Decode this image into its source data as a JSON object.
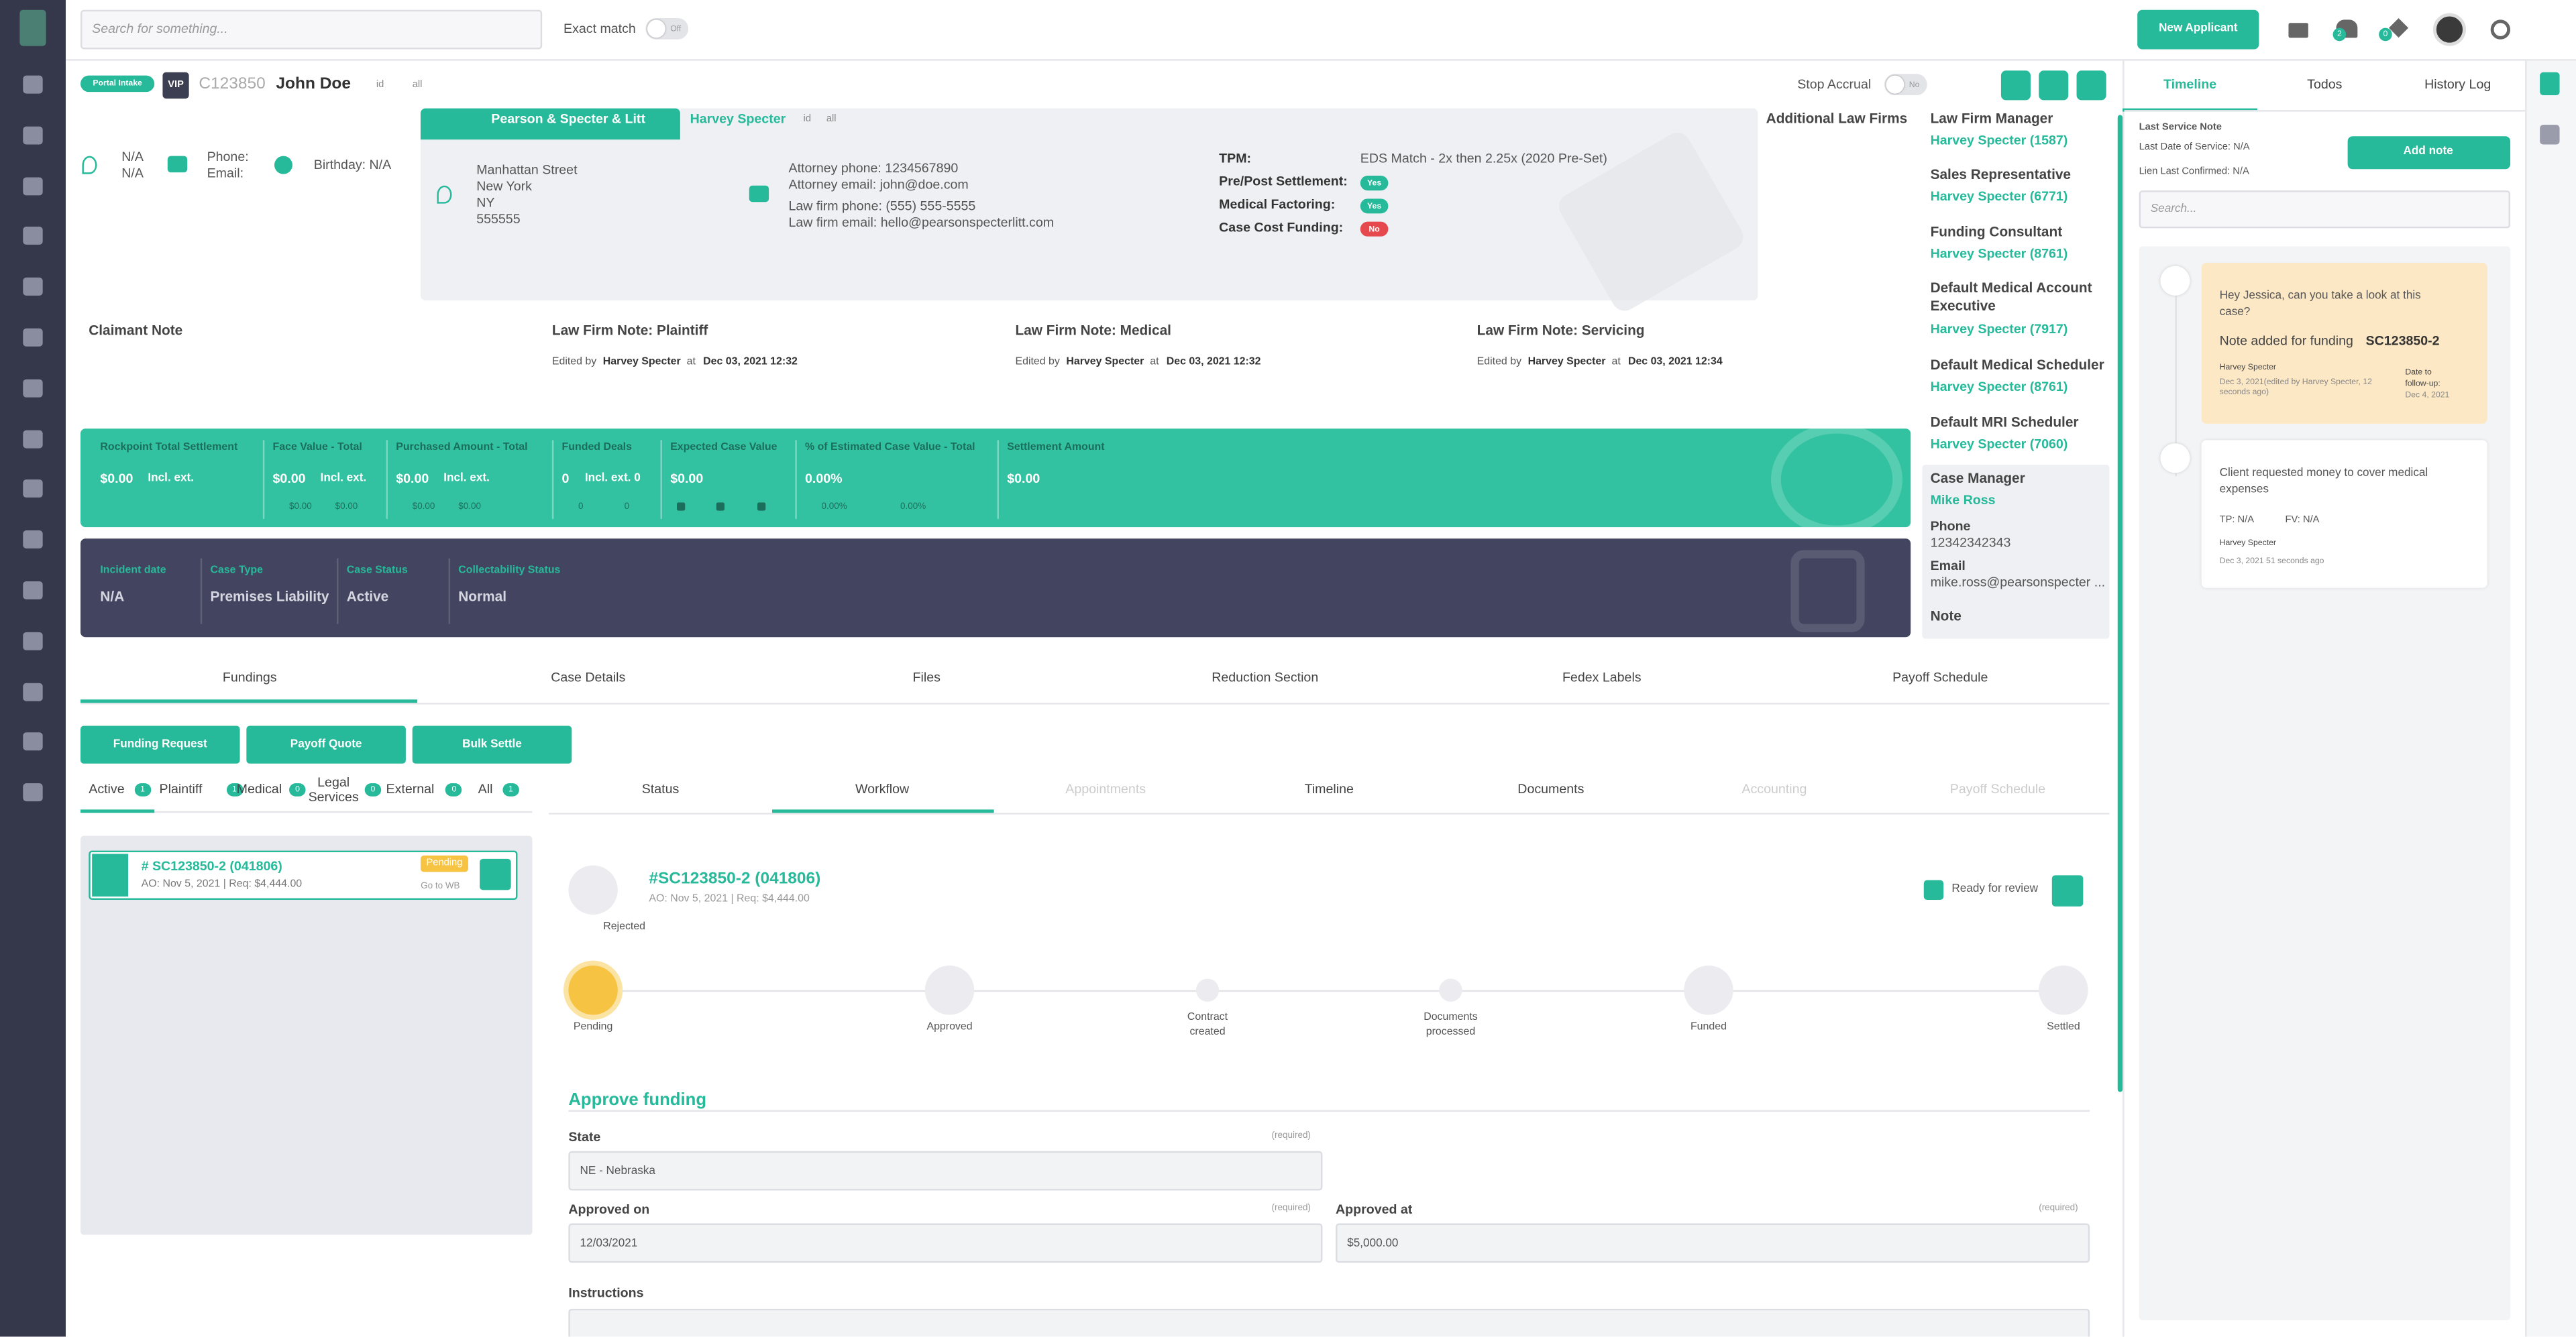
{
  "topbar": {
    "search": "Search for something...",
    "exact_match": "Exact match",
    "toggle": "Off",
    "new_applicant": "New Applicant",
    "badges": [
      "2",
      "0"
    ]
  },
  "header": {
    "portal_intake": "Portal Intake",
    "vip": "VIP",
    "case_id": "C123850",
    "name": "John Doe",
    "copy_id": "id",
    "copy_all": "all",
    "stop_accrual": "Stop Accrual",
    "toggle": "No"
  },
  "client": {
    "line1": "N/A",
    "line2": "N/A",
    "phone": "Phone:",
    "email": "Email:",
    "birthday": "Birthday: N/A"
  },
  "law_firm": {
    "name": "Pearson & Specter & Litt",
    "attorney": "Harvey Specter",
    "copy_id": "id",
    "copy_all": "all",
    "address": [
      "Manhattan Street",
      "New York",
      "NY",
      "555555"
    ],
    "contacts": [
      "Attorney phone: 1234567890",
      "Attorney email: john@doe.com",
      "Law firm phone: (555) 555-5555",
      "Law firm email: hello@pearsonspecterlitt.com"
    ],
    "fields": [
      {
        "label": "TPM:",
        "value": "EDS Match - 2x then 2.25x (2020 Pre-Set)"
      },
      {
        "label": "Pre/Post Settlement:",
        "value": "Yes"
      },
      {
        "label": "Medical Factoring:",
        "value": "Yes"
      },
      {
        "label": "Case Cost Funding:",
        "value": "No"
      }
    ]
  },
  "additional_law_firms": "Additional Law Firms",
  "staff": [
    {
      "role": "Law Firm Manager",
      "name": "Harvey Specter (1587)"
    },
    {
      "role": "Sales Representative",
      "name": "Harvey Specter (6771)"
    },
    {
      "role": "Funding Consultant",
      "name": "Harvey Specter (8761)"
    },
    {
      "role": "Default Medical Account Executive",
      "name": "Harvey Specter (7917)"
    },
    {
      "role": "Default Medical Scheduler",
      "name": "Harvey Specter (8761)"
    },
    {
      "role": "Default MRI Scheduler",
      "name": "Harvey Specter (7060)"
    }
  ],
  "case_manager": {
    "title": "Case Manager",
    "name": "Mike Ross",
    "phone_label": "Phone",
    "phone": "12342342343",
    "email_label": "Email",
    "email": "mike.ross@pearsonspecter ...",
    "note": "Note"
  },
  "notes": {
    "claimant": "Claimant Note",
    "law_firm": [
      {
        "title": "Law Firm Note: Plaintiff",
        "edited_by": "Edited by",
        "author": "Harvey Specter",
        "at": "at",
        "date": "Dec 03, 2021 12:32"
      },
      {
        "title": "Law Firm Note: Medical",
        "edited_by": "Edited by",
        "author": "Harvey Specter",
        "at": "at",
        "date": "Dec 03, 2021 12:32"
      },
      {
        "title": "Law Firm Note: Servicing",
        "edited_by": "Edited by",
        "author": "Harvey Specter",
        "at": "at",
        "date": "Dec 03, 2021 12:34"
      }
    ]
  },
  "stats": [
    {
      "label": "Rockpoint Total Settlement",
      "value": "$0.00",
      "ext": "Incl. ext.",
      "sub": []
    },
    {
      "label": "Face Value - Total",
      "value": "$0.00",
      "ext": "Incl. ext.",
      "sub": [
        "$0.00",
        "$0.00"
      ]
    },
    {
      "label": "Purchased Amount - Total",
      "value": "$0.00",
      "ext": "Incl. ext.",
      "sub": [
        "$0.00",
        "$0.00"
      ]
    },
    {
      "label": "Funded Deals",
      "value": "0",
      "ext": "Incl. ext. 0",
      "sub": [
        "0",
        "0"
      ]
    },
    {
      "label": "Expected Case Value",
      "value": "$0.00",
      "sub": []
    },
    {
      "label": "% of Estimated Case Value - Total",
      "value": "0.00%",
      "sub": [
        "0.00%",
        "0.00%"
      ]
    },
    {
      "label": "Settlement Amount",
      "value": "$0.00",
      "sub": []
    }
  ],
  "case_info": [
    {
      "label": "Incident date",
      "value": "N/A"
    },
    {
      "label": "Case Type",
      "value": "Premises Liability"
    },
    {
      "label": "Case Status",
      "value": "Active"
    },
    {
      "label": "Collectability Status",
      "value": "Normal"
    }
  ],
  "tabs": [
    "Fundings",
    "Case Details",
    "Files",
    "Reduction Section",
    "Fedex Labels",
    "Payoff Schedule"
  ],
  "actions": [
    "Funding Request",
    "Payoff Quote",
    "Bulk Settle"
  ],
  "filters": [
    {
      "label": "Active",
      "count": "1"
    },
    {
      "label": "Plaintiff",
      "count": "1"
    },
    {
      "label": "Medical",
      "count": "0"
    },
    {
      "label": "Legal Services",
      "count": "0"
    },
    {
      "label": "External",
      "count": "0"
    },
    {
      "label": "All",
      "count": "1"
    }
  ],
  "funding_card": {
    "title": "# SC123850-2 (041806)",
    "meta": "AO: Nov 5, 2021 | Req: $4,444.00",
    "status": "Pending",
    "link": "Go to WB"
  },
  "subtabs": [
    "Status",
    "Workflow",
    "Appointments",
    "Timeline",
    "Documents",
    "Accounting",
    "Payoff Schedule"
  ],
  "workflow": {
    "title": "#SC123850-2 (041806)",
    "meta": "AO: Nov 5, 2021 | Req: $4,444.00",
    "ready": "Ready for review",
    "rejected": "Rejected",
    "steps": [
      "Pending",
      "Approved",
      "Contract created",
      "Documents processed",
      "Funded",
      "Settled"
    ]
  },
  "form": {
    "title": "Approve funding",
    "required": "(required)",
    "fields": [
      {
        "label": "State",
        "value": "NE - Nebraska"
      },
      {
        "label": "Approved on",
        "value": "12/03/2021"
      },
      {
        "label": "Approved at",
        "value": "$5,000.00"
      }
    ],
    "instructions": "Instructions"
  },
  "side_panel": {
    "tabs": [
      "Timeline",
      "Todos",
      "History Log"
    ],
    "last_service_note": "Last Service Note",
    "last_date": "Last Date of Service: N/A",
    "lien": "Lien Last Confirmed: N/A",
    "add_note": "Add note",
    "search": "Search...",
    "notes": [
      {
        "text": "Hey Jessica, can you take a look at this case?",
        "added": "Note added for funding",
        "funding": "SC123850-2",
        "author": "Harvey Specter",
        "date": "Dec 3, 2021(edited by Harvey Specter, 12 seconds ago)",
        "follow_label": "Date to follow-up:",
        "follow_date": "Dec 4, 2021"
      },
      {
        "text": "Client requested money to cover medical expenses",
        "tp": "TP: N/A",
        "fv": "FV: N/A",
        "author": "Harvey Specter",
        "date": "Dec 3, 2021  51 seconds ago"
      }
    ]
  }
}
